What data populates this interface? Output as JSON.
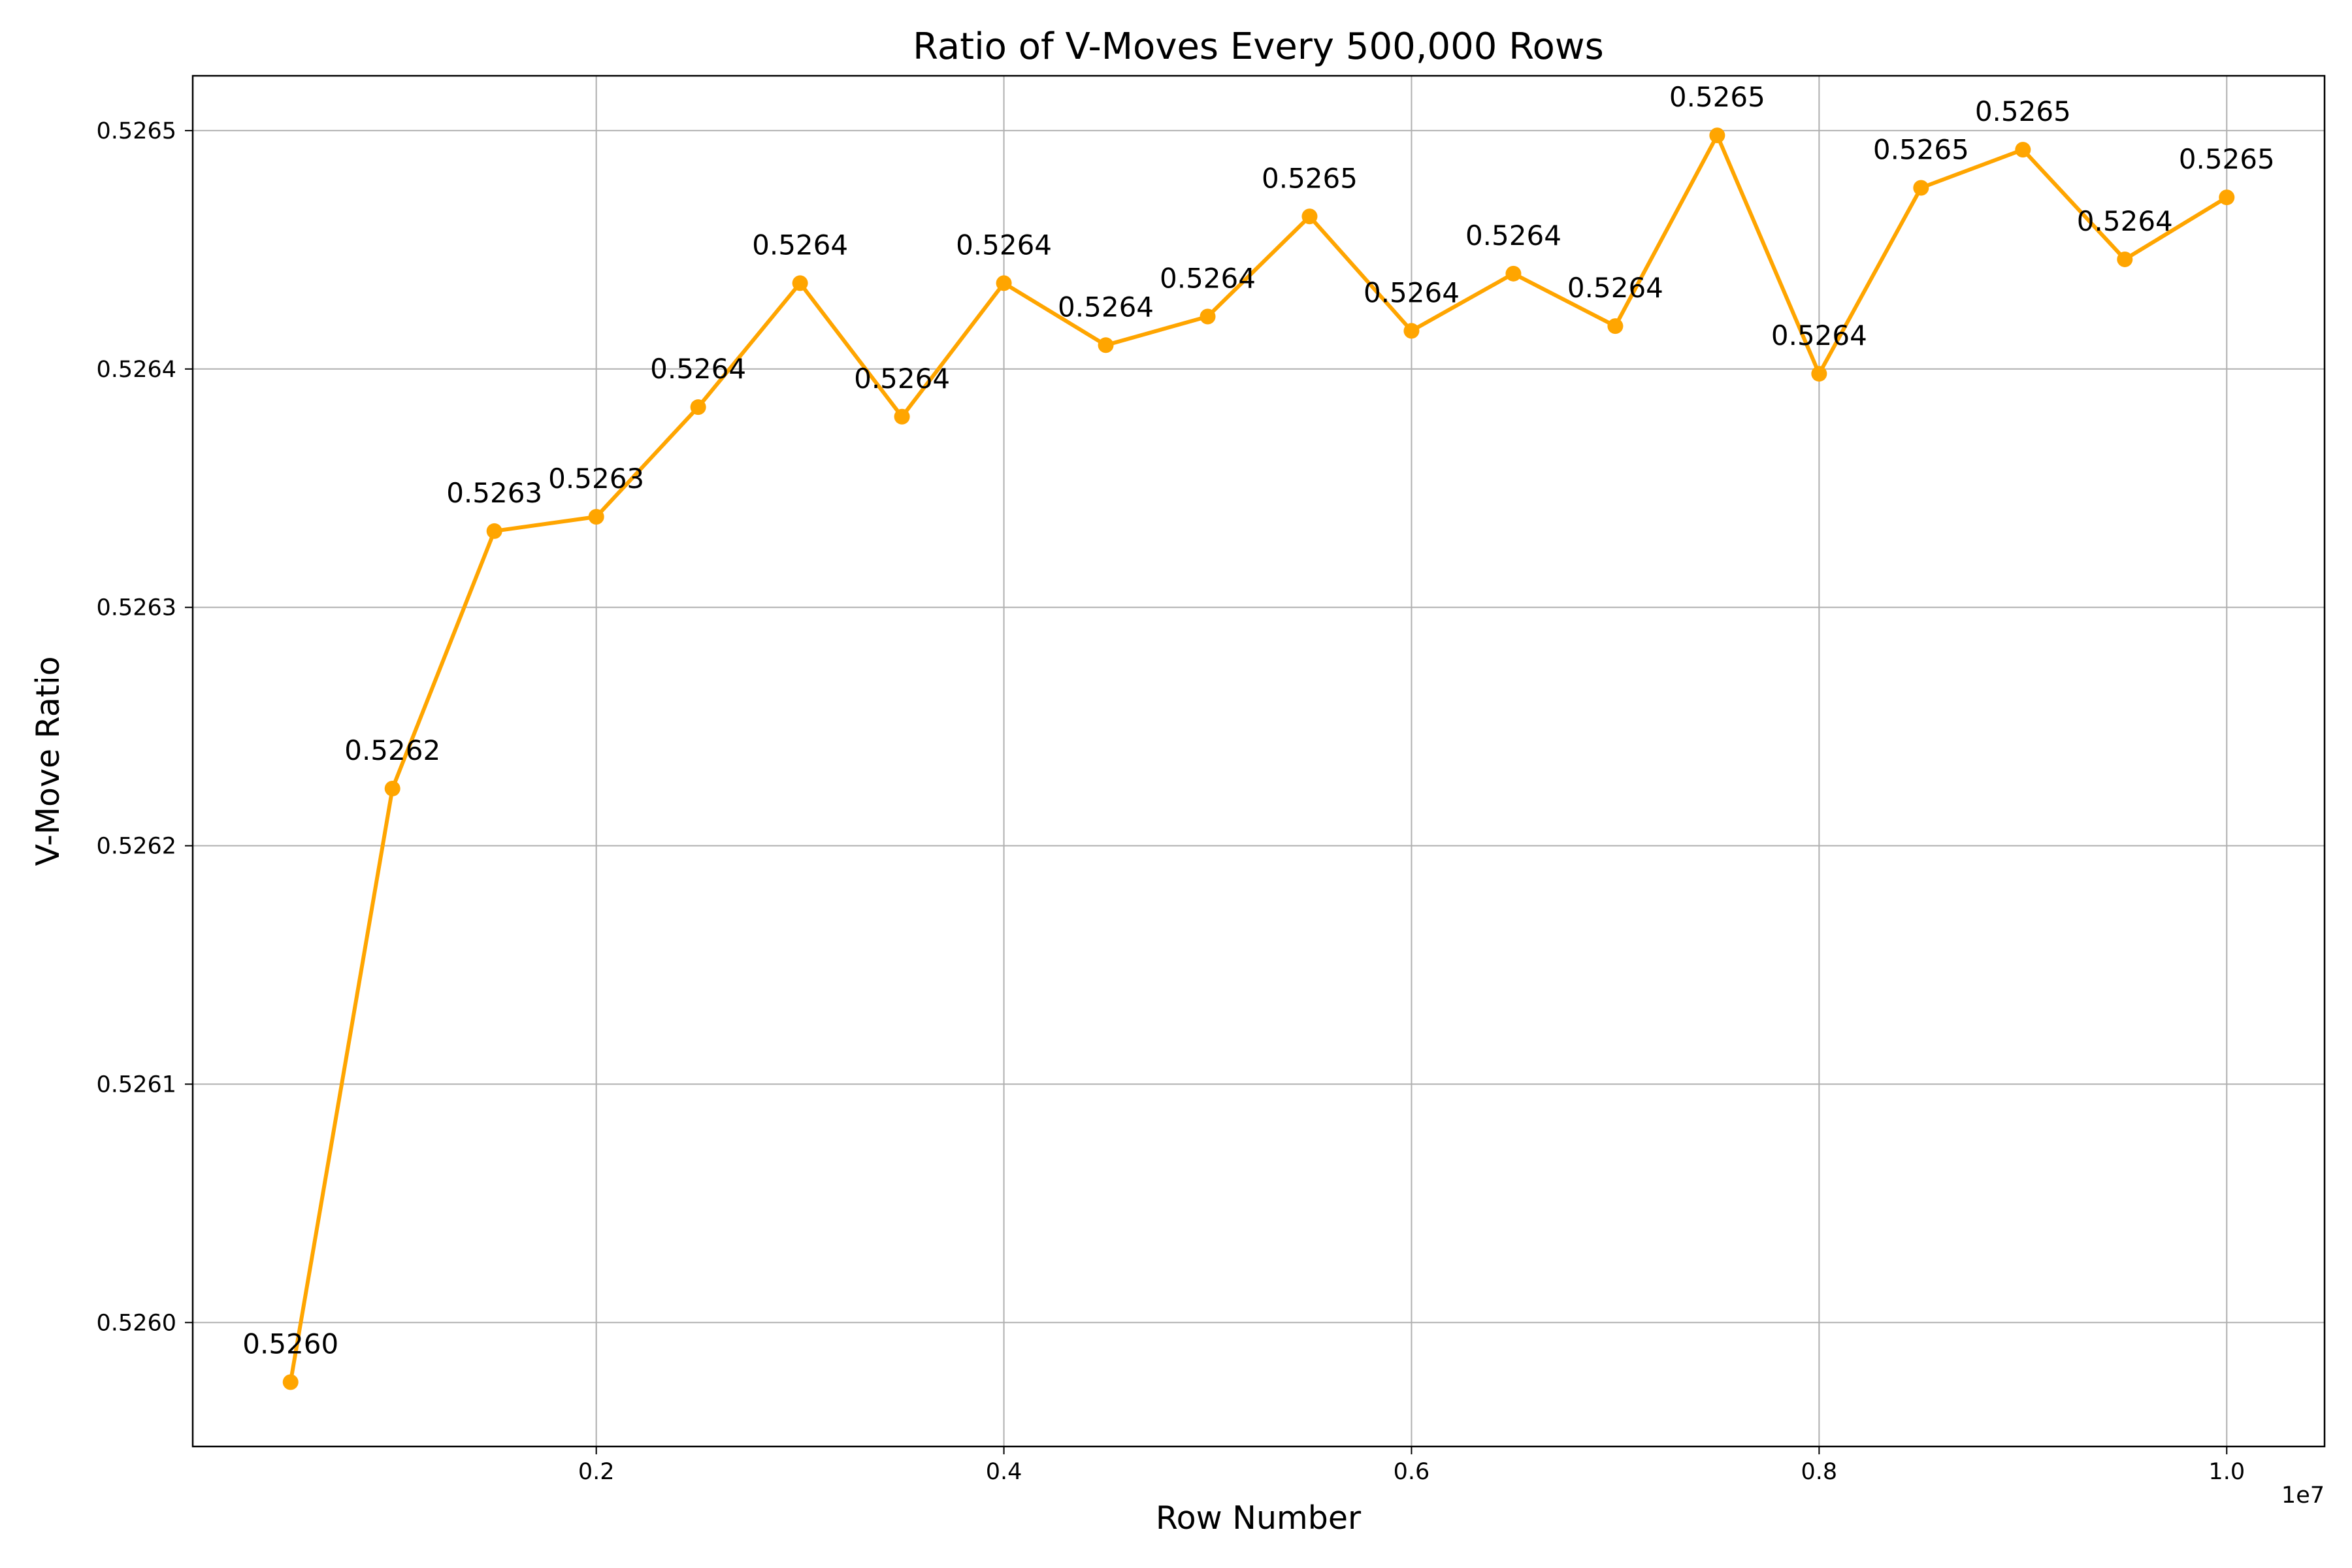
{
  "chart_data": {
    "type": "line",
    "title": "Ratio of V-Moves Every 500,000 Rows",
    "xlabel": "Row Number",
    "ylabel": "V-Move Ratio",
    "x_offset_label": "1e7",
    "xlim": [
      20000,
      10480000
    ],
    "ylim": [
      0.525948,
      0.526523
    ],
    "grid": true,
    "color": "#FFA500",
    "x_ticks": [
      {
        "value": 2000000,
        "label": "0.2"
      },
      {
        "value": 4000000,
        "label": "0.4"
      },
      {
        "value": 6000000,
        "label": "0.6"
      },
      {
        "value": 8000000,
        "label": "0.8"
      },
      {
        "value": 10000000,
        "label": "1.0"
      }
    ],
    "y_ticks": [
      {
        "value": 0.526,
        "label": "0.5260"
      },
      {
        "value": 0.5261,
        "label": "0.5261"
      },
      {
        "value": 0.5262,
        "label": "0.5262"
      },
      {
        "value": 0.5263,
        "label": "0.5263"
      },
      {
        "value": 0.5264,
        "label": "0.5264"
      },
      {
        "value": 0.5265,
        "label": "0.5265"
      }
    ],
    "series": [
      {
        "x": [
          500000,
          1000000,
          1500000,
          2000000,
          2500000,
          3000000,
          3500000,
          4000000,
          4500000,
          5000000,
          5500000,
          6000000,
          6500000,
          7000000,
          7500000,
          8000000,
          8500000,
          9000000,
          9500000,
          10000000
        ],
        "y": [
          0.525975,
          0.526224,
          0.526332,
          0.526338,
          0.526384,
          0.526436,
          0.52638,
          0.526436,
          0.52641,
          0.526422,
          0.526464,
          0.526416,
          0.52644,
          0.526418,
          0.526498,
          0.526398,
          0.526476,
          0.526492,
          0.526446,
          0.526472
        ],
        "labels": [
          "0.5260",
          "0.5262",
          "0.5263",
          "0.5263",
          "0.5264",
          "0.5264",
          "0.5264",
          "0.5264",
          "0.5264",
          "0.5264",
          "0.5265",
          "0.5264",
          "0.5264",
          "0.5264",
          "0.5265",
          "0.5264",
          "0.5265",
          "0.5265",
          "0.5264",
          "0.5265"
        ]
      }
    ]
  }
}
